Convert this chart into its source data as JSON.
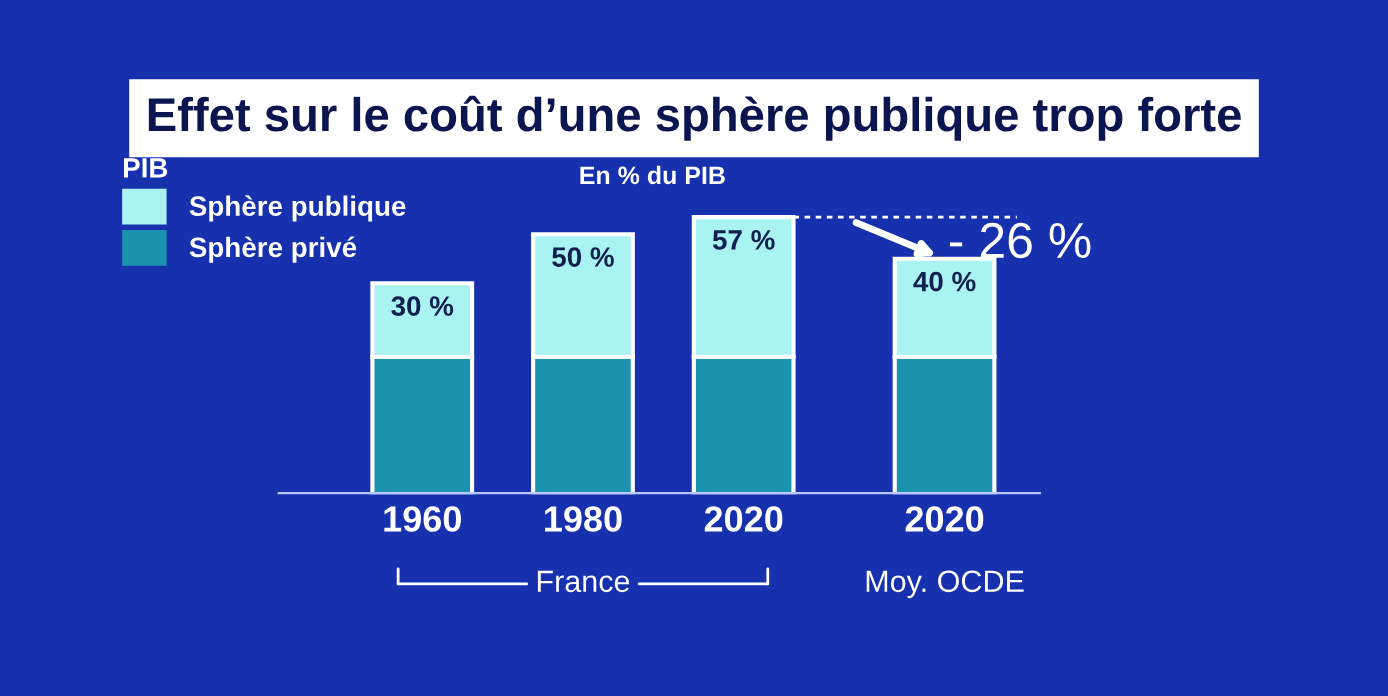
{
  "chart_data": {
    "type": "bar",
    "title": "Effet sur le coût d’une sphère publique trop forte",
    "subtitle": "En % du PIB",
    "categories": [
      "1960",
      "1980",
      "2020",
      "2020"
    ],
    "stacked": true,
    "legend": "top left",
    "legend_title": "PIB",
    "series": [
      {
        "name": "Sphère privé",
        "color": "#1b93ae",
        "values": [
          56,
          56,
          56,
          56
        ]
      },
      {
        "name": "Sphère publique",
        "color": "#a9f3f3",
        "values": [
          30,
          50,
          57,
          40
        ],
        "value_labels": [
          "30 %",
          "50 %",
          "57 %",
          "40 %"
        ]
      }
    ],
    "annotations": [
      "France",
      "Moy. OCDE",
      "- 26 %"
    ]
  }
}
